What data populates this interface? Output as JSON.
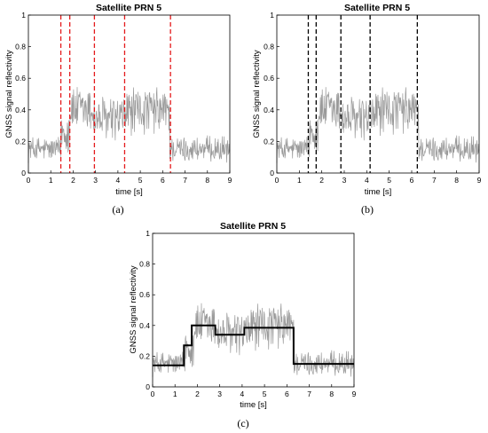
{
  "chart_data": [
    {
      "type": "line",
      "caption": "(a)",
      "title": "Satellite PRN 5",
      "xlabel": "time [s]",
      "ylabel": "GNSS signal reflectivity",
      "xlim": [
        0,
        9
      ],
      "ylim": [
        0,
        1
      ],
      "xticks": [
        "0",
        "1",
        "2",
        "3",
        "4",
        "5",
        "6",
        "7",
        "8",
        "9"
      ],
      "yticks": [
        "0",
        "0.2",
        "0.4",
        "0.6",
        "0.8",
        "1"
      ],
      "signal_levels": [
        {
          "x": [
            0,
            1.45
          ],
          "level": 0.15
        },
        {
          "x": [
            1.45,
            1.85
          ],
          "level": 0.27
        },
        {
          "x": [
            1.85,
            2.9
          ],
          "level": 0.4
        },
        {
          "x": [
            2.9,
            4.3
          ],
          "level": 0.34
        },
        {
          "x": [
            4.3,
            6.3
          ],
          "level": 0.39
        },
        {
          "x": [
            6.3,
            9.0
          ],
          "level": 0.15
        }
      ],
      "change_points": [
        1.45,
        1.85,
        2.95,
        4.3,
        6.35
      ],
      "change_point_color": "#e41a1c",
      "signal_color": "#9a9a9a"
    },
    {
      "type": "line",
      "caption": "(b)",
      "title": "Satellite PRN 5",
      "xlabel": "time [s]",
      "ylabel": "GNSS signal reflectivity",
      "xlim": [
        0,
        9
      ],
      "ylim": [
        0,
        1
      ],
      "xticks": [
        "0",
        "1",
        "2",
        "3",
        "4",
        "5",
        "6",
        "7",
        "8",
        "9"
      ],
      "yticks": [
        "0",
        "0.2",
        "0.4",
        "0.6",
        "0.8",
        "1"
      ],
      "signal_levels": [
        {
          "x": [
            0,
            1.45
          ],
          "level": 0.15
        },
        {
          "x": [
            1.45,
            1.85
          ],
          "level": 0.27
        },
        {
          "x": [
            1.85,
            2.9
          ],
          "level": 0.4
        },
        {
          "x": [
            2.9,
            4.3
          ],
          "level": 0.34
        },
        {
          "x": [
            4.3,
            6.3
          ],
          "level": 0.39
        },
        {
          "x": [
            6.3,
            9.0
          ],
          "level": 0.15
        }
      ],
      "change_points": [
        1.4,
        1.75,
        2.85,
        4.15,
        6.25
      ],
      "change_point_color": "#000000",
      "signal_color": "#9a9a9a"
    },
    {
      "type": "line",
      "caption": "(c)",
      "title": "Satellite PRN 5",
      "xlabel": "time [s]",
      "ylabel": "GNSS signal reflectivity",
      "xlim": [
        0,
        9
      ],
      "ylim": [
        0,
        1
      ],
      "xticks": [
        "0",
        "1",
        "2",
        "3",
        "4",
        "5",
        "6",
        "7",
        "8",
        "9"
      ],
      "yticks": [
        "0",
        "0.2",
        "0.4",
        "0.6",
        "0.8",
        "1"
      ],
      "signal_levels": [
        {
          "x": [
            0,
            1.45
          ],
          "level": 0.15
        },
        {
          "x": [
            1.45,
            1.85
          ],
          "level": 0.27
        },
        {
          "x": [
            1.85,
            2.9
          ],
          "level": 0.4
        },
        {
          "x": [
            2.9,
            4.3
          ],
          "level": 0.34
        },
        {
          "x": [
            4.3,
            6.3
          ],
          "level": 0.39
        },
        {
          "x": [
            6.3,
            9.0
          ],
          "level": 0.15
        }
      ],
      "step_fit": [
        {
          "x": [
            0,
            1.4
          ],
          "y": 0.14
        },
        {
          "x": [
            1.4,
            1.75
          ],
          "y": 0.27
        },
        {
          "x": [
            1.75,
            2.8
          ],
          "y": 0.4
        },
        {
          "x": [
            2.8,
            4.1
          ],
          "y": 0.34
        },
        {
          "x": [
            4.1,
            6.3
          ],
          "y": 0.385
        },
        {
          "x": [
            6.3,
            9.0
          ],
          "y": 0.15
        }
      ],
      "step_color": "#000000",
      "signal_color": "#9a9a9a"
    }
  ]
}
